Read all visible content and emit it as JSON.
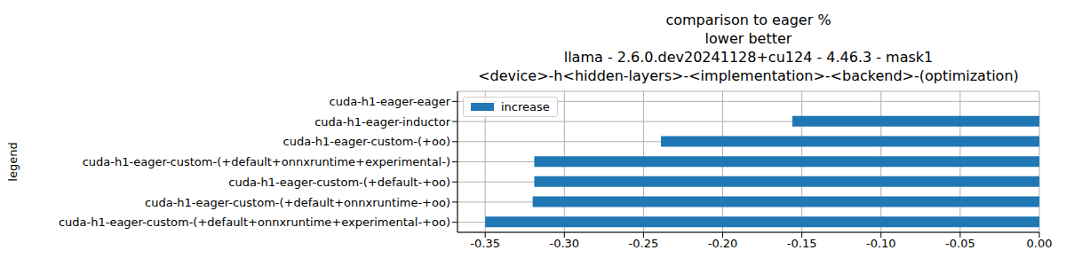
{
  "chart_data": {
    "type": "bar",
    "title": "comparison to eager %\nlower better\nllama - 2.6.0.dev20241128+cu124 - 4.46.3 - mask1\n<device>-h<hidden-layers>-<implementation>-<backend>-(optimization)",
    "y_label": "legend",
    "orientation": "horizontal",
    "grid": true,
    "legend": "upper left",
    "categories": [
      "cuda-h1-eager-eager",
      "cuda-h1-eager-inductor",
      "cuda-h1-eager-custom-(+oo)",
      "cuda-h1-eager-custom-(+default+onnxruntime+experimental-)",
      "cuda-h1-eager-custom-(+default-+oo)",
      "cuda-h1-eager-custom-(+default+onnxruntime-+oo)",
      "cuda-h1-eager-custom-(+default+onnxruntime+experimental-+oo)"
    ],
    "series": [
      {
        "name": "increase",
        "color": "#1f77b4",
        "values": [
          0,
          -0.156,
          -0.239,
          -0.319,
          -0.319,
          -0.32,
          -0.35
        ]
      }
    ],
    "xlim": [
      -0.3675,
      0
    ],
    "xticks": [
      {
        "value": -0.35,
        "label": "-0.35"
      },
      {
        "value": -0.3,
        "label": "-0.30"
      },
      {
        "value": -0.25,
        "label": "-0.25"
      },
      {
        "value": -0.2,
        "label": "-0.20"
      },
      {
        "value": -0.15,
        "label": "-0.15"
      },
      {
        "value": -0.1,
        "label": "-0.10"
      },
      {
        "value": -0.05,
        "label": "-0.05"
      },
      {
        "value": 0,
        "label": "0.00"
      }
    ]
  }
}
